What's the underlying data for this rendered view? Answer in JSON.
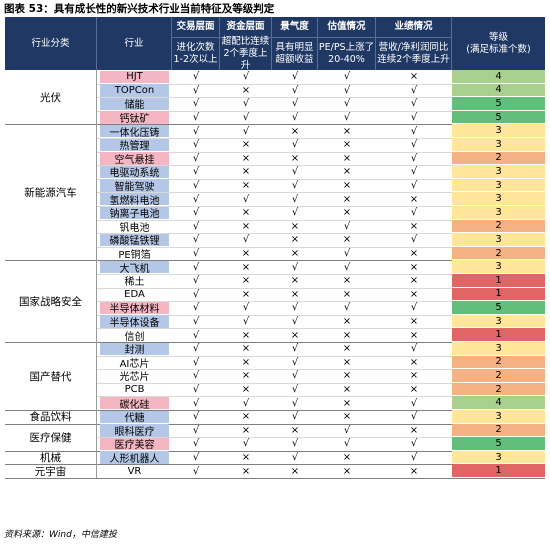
{
  "title": "图表 53：具有成长性的新兴技术行业当前特征及等级判定",
  "header": {
    "category": "行业分类",
    "industry": "行业",
    "criteria": [
      {
        "name": "交易层面",
        "desc": [
          "进化次数",
          "1-2次以上"
        ]
      },
      {
        "name": "资金层面",
        "desc": [
          "超配比连续",
          "2个季度上升"
        ]
      },
      {
        "name": "景气度",
        "desc": [
          "具有明显",
          "超额收益"
        ]
      },
      {
        "name": "估值情况",
        "desc": [
          "PE/PS上涨了",
          "20-40%"
        ]
      },
      {
        "name": "业绩情况",
        "desc": [
          "营收/净利润同比",
          "连续2个季度上升"
        ]
      }
    ],
    "grade": [
      "等级",
      "(满足标准个数)"
    ]
  },
  "groups": [
    {
      "category": "光伏",
      "rows": [
        {
          "industry": "HJT",
          "color": "#f4b6c2",
          "marks": [
            "√",
            "√",
            "√",
            "√",
            "×"
          ],
          "grade": 4
        },
        {
          "industry": "TOPCon",
          "color": "#b4c7e7",
          "marks": [
            "√",
            "×",
            "√",
            "√",
            "√"
          ],
          "grade": 4
        },
        {
          "industry": "储能",
          "color": "#b4c7e7",
          "marks": [
            "√",
            "√",
            "√",
            "√",
            "√"
          ],
          "grade": 5
        },
        {
          "industry": "钙钛矿",
          "color": "#f4b6c2",
          "marks": [
            "√",
            "√",
            "√",
            "√",
            "√"
          ],
          "grade": 5
        }
      ]
    },
    {
      "category": "新能源汽车",
      "rows": [
        {
          "industry": "一体化压铸",
          "color": "#b4c7e7",
          "marks": [
            "√",
            "√",
            "×",
            "×",
            "√"
          ],
          "grade": 3
        },
        {
          "industry": "热管理",
          "color": "#b4c7e7",
          "marks": [
            "√",
            "×",
            "√",
            "×",
            "√"
          ],
          "grade": 3
        },
        {
          "industry": "空气悬挂",
          "color": "#f4b6c2",
          "marks": [
            "√",
            "×",
            "×",
            "×",
            "√"
          ],
          "grade": 2
        },
        {
          "industry": "电驱动系统",
          "color": "#b4c7e7",
          "marks": [
            "√",
            "×",
            "√",
            "×",
            "√"
          ],
          "grade": 3
        },
        {
          "industry": "智能驾驶",
          "color": "#b4c7e7",
          "marks": [
            "√",
            "×",
            "√",
            "×",
            "√"
          ],
          "grade": 3
        },
        {
          "industry": "氢燃料电池",
          "color": "#b4c7e7",
          "marks": [
            "√",
            "√",
            "√",
            "×",
            "×"
          ],
          "grade": 3
        },
        {
          "industry": "钠离子电池",
          "color": "#b4c7e7",
          "marks": [
            "√",
            "×",
            "√",
            "×",
            "√"
          ],
          "grade": 3
        },
        {
          "industry": "钒电池",
          "color": null,
          "marks": [
            "√",
            "×",
            "×",
            "√",
            "×"
          ],
          "grade": 2
        },
        {
          "industry": "磷酸锰铁锂",
          "color": "#b4c7e7",
          "marks": [
            "√",
            "√",
            "×",
            "×",
            "√"
          ],
          "grade": 3
        },
        {
          "industry": "PE铜箔",
          "color": null,
          "marks": [
            "√",
            "×",
            "×",
            "√",
            "×"
          ],
          "grade": 2
        }
      ]
    },
    {
      "category": "国家战略安全",
      "rows": [
        {
          "industry": "大飞机",
          "color": "#b4c7e7",
          "marks": [
            "√",
            "×",
            "√",
            "√",
            "×"
          ],
          "grade": 3
        },
        {
          "industry": "稀土",
          "color": null,
          "marks": [
            "√",
            "×",
            "×",
            "×",
            "×"
          ],
          "grade": 1
        },
        {
          "industry": "EDA",
          "color": null,
          "marks": [
            "√",
            "×",
            "×",
            "×",
            "×"
          ],
          "grade": 1
        },
        {
          "industry": "半导体材料",
          "color": "#f4b6c2",
          "marks": [
            "√",
            "√",
            "√",
            "√",
            "√"
          ],
          "grade": 5
        },
        {
          "industry": "半导体设备",
          "color": "#b4c7e7",
          "marks": [
            "√",
            "√",
            "√",
            "×",
            "×"
          ],
          "grade": 3
        },
        {
          "industry": "信创",
          "color": null,
          "marks": [
            "√",
            "×",
            "×",
            "×",
            "×"
          ],
          "grade": 1
        }
      ]
    },
    {
      "category": "国产替代",
      "rows": [
        {
          "industry": "封测",
          "color": "#b4c7e7",
          "marks": [
            "√",
            "×",
            "√",
            "×",
            "√"
          ],
          "grade": 3
        },
        {
          "industry": "AI芯片",
          "color": null,
          "marks": [
            "√",
            "×",
            "√",
            "×",
            "×"
          ],
          "grade": 2
        },
        {
          "industry": "光芯片",
          "color": null,
          "marks": [
            "√",
            "×",
            "√",
            "×",
            "×"
          ],
          "grade": 2
        },
        {
          "industry": "PCB",
          "color": null,
          "marks": [
            "√",
            "×",
            "√",
            "×",
            "×"
          ],
          "grade": 2
        },
        {
          "industry": "碳化硅",
          "color": "#f4b6c2",
          "marks": [
            "√",
            "√",
            "√",
            "×",
            "√"
          ],
          "grade": 4
        }
      ]
    },
    {
      "category": "食品饮料",
      "rows": [
        {
          "industry": "代糖",
          "color": "#b4c7e7",
          "marks": [
            "√",
            "×",
            "√",
            "×",
            "√"
          ],
          "grade": 3
        }
      ]
    },
    {
      "category": "医疗保健",
      "rows": [
        {
          "industry": "眼科医疗",
          "color": "#b4c7e7",
          "marks": [
            "√",
            "×",
            "×",
            "√",
            "×"
          ],
          "grade": 2
        },
        {
          "industry": "医疗美容",
          "color": "#f4b6c2",
          "marks": [
            "√",
            "√",
            "√",
            "√",
            "√"
          ],
          "grade": 5
        }
      ]
    },
    {
      "category": "机械",
      "rows": [
        {
          "industry": "人形机器人",
          "color": "#b4c7e7",
          "marks": [
            "√",
            "×",
            "√",
            "×",
            "√"
          ],
          "grade": 3
        }
      ]
    },
    {
      "category": "元宇宙",
      "rows": [
        {
          "industry": "VR",
          "color": null,
          "marks": [
            "√",
            "×",
            "×",
            "×",
            "×"
          ],
          "grade": 1
        }
      ]
    }
  ],
  "source": "资料来源：Wind，中信建投"
}
